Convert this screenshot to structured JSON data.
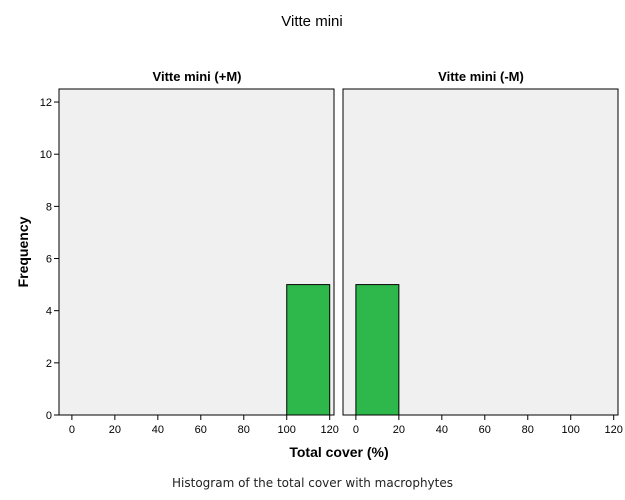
{
  "chart_data": {
    "type": "bar",
    "title": "Vitte mini",
    "xlabel": "Total cover (%)",
    "ylabel": "Frequency",
    "caption": "Histogram of the total cover with macrophytes",
    "xlim": [
      -6,
      122
    ],
    "ylim": [
      0,
      12.5
    ],
    "xticks": [
      0,
      20,
      40,
      60,
      80,
      100,
      120
    ],
    "yticks": [
      0,
      2,
      4,
      6,
      8,
      10,
      12
    ],
    "grid": false,
    "colors": {
      "plot_background": "#f0f0f0",
      "bar_fill": "#2eb84b",
      "bar_edge": "#000000"
    },
    "panels": [
      {
        "title": "Vitte mini (+M)",
        "bins": [
          {
            "x_start": 100,
            "x_end": 120,
            "frequency": 5
          }
        ]
      },
      {
        "title": "Vitte mini (-M)",
        "bins": [
          {
            "x_start": 0,
            "x_end": 20,
            "frequency": 5
          }
        ]
      }
    ]
  }
}
